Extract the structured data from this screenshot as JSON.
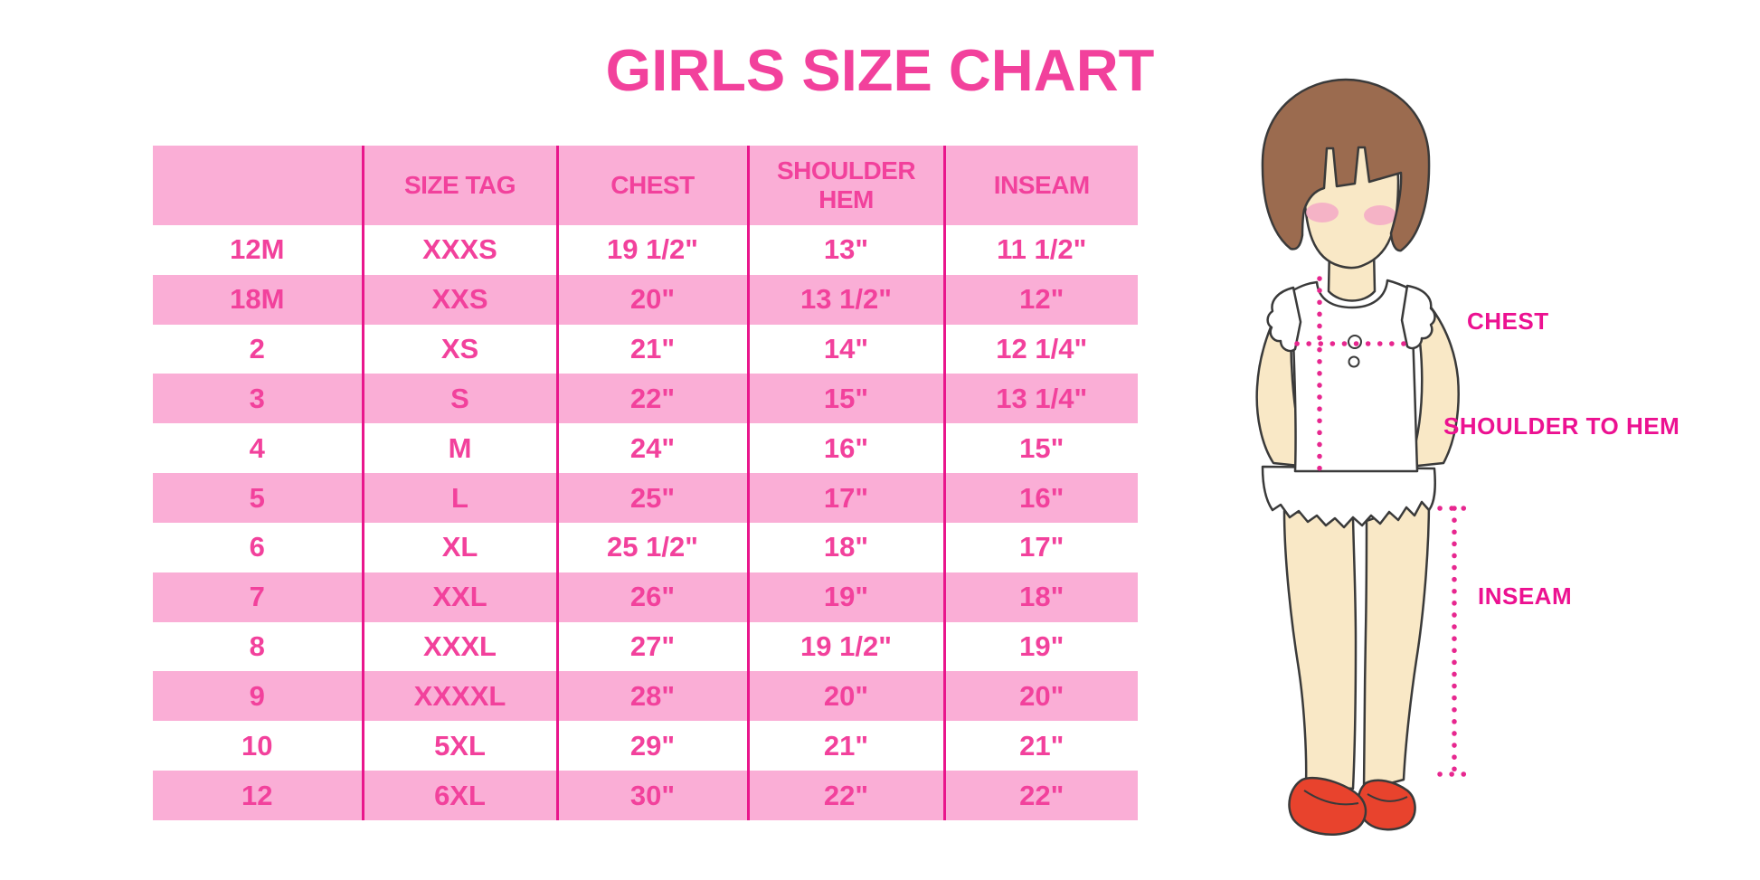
{
  "title": "GIRLS SIZE CHART",
  "chart_data": {
    "type": "table",
    "title": "GIRLS SIZE CHART",
    "columns": [
      "",
      "SIZE TAG",
      "CHEST",
      "SHOULDER HEM",
      "INSEAM"
    ],
    "rows": [
      [
        "12M",
        "XXXS",
        "19 1/2\"",
        "13\"",
        "11 1/2\""
      ],
      [
        "18M",
        "XXS",
        "20\"",
        "13 1/2\"",
        "12\""
      ],
      [
        "2",
        "XS",
        "21\"",
        "14\"",
        "12 1/4\""
      ],
      [
        "3",
        "S",
        "22\"",
        "15\"",
        "13 1/4\""
      ],
      [
        "4",
        "M",
        "24\"",
        "16\"",
        "15\""
      ],
      [
        "5",
        "L",
        "25\"",
        "17\"",
        "16\""
      ],
      [
        "6",
        "XL",
        "25 1/2\"",
        "18\"",
        "17\""
      ],
      [
        "7",
        "XXL",
        "26\"",
        "19\"",
        "18\""
      ],
      [
        "8",
        "XXXL",
        "27\"",
        "19 1/2\"",
        "19\""
      ],
      [
        "9",
        "XXXXL",
        "28\"",
        "20\"",
        "20\""
      ],
      [
        "10",
        "5XL",
        "29\"",
        "21\"",
        "21\""
      ],
      [
        "12",
        "6XL",
        "30\"",
        "22\"",
        "22\""
      ]
    ],
    "layout": {
      "striped": true,
      "first_data_row_background": "white",
      "grid": "vertical-dividers-only",
      "legend_position": "none"
    }
  },
  "figure": {
    "type": "girl-measurement-illustration",
    "labels": {
      "chest": "CHEST",
      "shoulder_to_hem": "SHOULDER TO HEM",
      "inseam": "INSEAM"
    }
  },
  "colors": {
    "accent_pink": "#F2419C",
    "row_pink": "#FAAED6",
    "divider_magenta": "#E9168C",
    "label_magenta": "#EC1191",
    "dot_magenta": "#E7278F",
    "hair_brown": "#9B6B4F",
    "skin_tan": "#F9E8C6",
    "blush_pink": "#F4A9C6",
    "shoe_red": "#E8432D",
    "outline_dark": "#3A3A3A"
  }
}
